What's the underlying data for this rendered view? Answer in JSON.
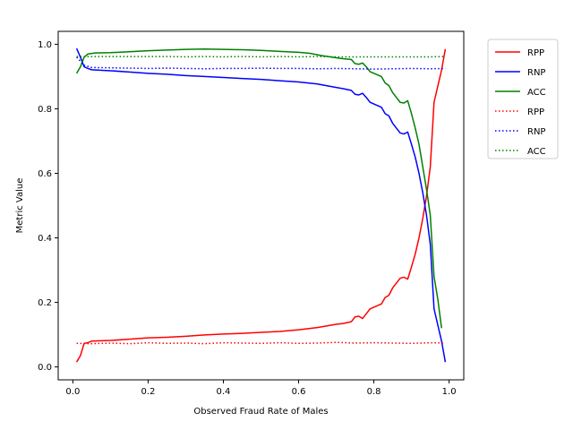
{
  "chart_data": {
    "type": "line",
    "title": "",
    "xlabel": "Observed Fraud Rate of Males",
    "ylabel": "Metric Value",
    "xlim": [
      -0.039,
      1.039
    ],
    "ylim": [
      -0.04,
      1.04
    ],
    "xticks": [
      0.0,
      0.2,
      0.4,
      0.6,
      0.8,
      1.0
    ],
    "xtick_labels": [
      "0.0",
      "0.2",
      "0.4",
      "0.6",
      "0.8",
      "1.0"
    ],
    "yticks": [
      0.0,
      0.2,
      0.4,
      0.6,
      0.8,
      1.0
    ],
    "ytick_labels": [
      "0.0",
      "0.2",
      "0.4",
      "0.6",
      "0.8",
      "1.0"
    ],
    "grid": false,
    "legend_position": "outside-top-right",
    "series": [
      {
        "name": "RPP",
        "color": "#ff0000",
        "style": "solid",
        "points": [
          [
            0.01,
            0.015
          ],
          [
            0.02,
            0.035
          ],
          [
            0.03,
            0.073
          ],
          [
            0.04,
            0.075
          ],
          [
            0.05,
            0.08
          ],
          [
            0.1,
            0.082
          ],
          [
            0.15,
            0.086
          ],
          [
            0.2,
            0.09
          ],
          [
            0.25,
            0.092
          ],
          [
            0.3,
            0.095
          ],
          [
            0.35,
            0.099
          ],
          [
            0.4,
            0.102
          ],
          [
            0.45,
            0.104
          ],
          [
            0.5,
            0.107
          ],
          [
            0.55,
            0.11
          ],
          [
            0.6,
            0.115
          ],
          [
            0.65,
            0.122
          ],
          [
            0.7,
            0.132
          ],
          [
            0.72,
            0.135
          ],
          [
            0.74,
            0.14
          ],
          [
            0.75,
            0.155
          ],
          [
            0.76,
            0.157
          ],
          [
            0.77,
            0.15
          ],
          [
            0.78,
            0.165
          ],
          [
            0.79,
            0.18
          ],
          [
            0.8,
            0.185
          ],
          [
            0.82,
            0.195
          ],
          [
            0.83,
            0.215
          ],
          [
            0.84,
            0.222
          ],
          [
            0.85,
            0.245
          ],
          [
            0.86,
            0.26
          ],
          [
            0.87,
            0.275
          ],
          [
            0.88,
            0.278
          ],
          [
            0.89,
            0.272
          ],
          [
            0.9,
            0.31
          ],
          [
            0.91,
            0.35
          ],
          [
            0.92,
            0.4
          ],
          [
            0.93,
            0.46
          ],
          [
            0.94,
            0.53
          ],
          [
            0.95,
            0.62
          ],
          [
            0.96,
            0.82
          ],
          [
            0.97,
            0.87
          ],
          [
            0.98,
            0.92
          ],
          [
            0.99,
            0.985
          ]
        ]
      },
      {
        "name": "RNP",
        "color": "#0000ff",
        "style": "solid",
        "points": [
          [
            0.01,
            0.987
          ],
          [
            0.02,
            0.96
          ],
          [
            0.03,
            0.93
          ],
          [
            0.04,
            0.925
          ],
          [
            0.05,
            0.921
          ],
          [
            0.1,
            0.918
          ],
          [
            0.15,
            0.914
          ],
          [
            0.2,
            0.91
          ],
          [
            0.25,
            0.907
          ],
          [
            0.3,
            0.903
          ],
          [
            0.35,
            0.9
          ],
          [
            0.4,
            0.897
          ],
          [
            0.45,
            0.894
          ],
          [
            0.5,
            0.891
          ],
          [
            0.55,
            0.887
          ],
          [
            0.6,
            0.883
          ],
          [
            0.65,
            0.877
          ],
          [
            0.7,
            0.866
          ],
          [
            0.72,
            0.862
          ],
          [
            0.74,
            0.857
          ],
          [
            0.75,
            0.845
          ],
          [
            0.76,
            0.843
          ],
          [
            0.77,
            0.848
          ],
          [
            0.78,
            0.835
          ],
          [
            0.79,
            0.82
          ],
          [
            0.8,
            0.815
          ],
          [
            0.82,
            0.805
          ],
          [
            0.83,
            0.785
          ],
          [
            0.84,
            0.778
          ],
          [
            0.85,
            0.755
          ],
          [
            0.86,
            0.74
          ],
          [
            0.87,
            0.725
          ],
          [
            0.88,
            0.722
          ],
          [
            0.89,
            0.728
          ],
          [
            0.9,
            0.69
          ],
          [
            0.91,
            0.65
          ],
          [
            0.92,
            0.6
          ],
          [
            0.93,
            0.54
          ],
          [
            0.94,
            0.47
          ],
          [
            0.95,
            0.38
          ],
          [
            0.96,
            0.18
          ],
          [
            0.97,
            0.13
          ],
          [
            0.98,
            0.08
          ],
          [
            0.99,
            0.015
          ]
        ]
      },
      {
        "name": "ACC",
        "color": "#008000",
        "style": "solid",
        "points": [
          [
            0.01,
            0.91
          ],
          [
            0.02,
            0.93
          ],
          [
            0.03,
            0.96
          ],
          [
            0.04,
            0.97
          ],
          [
            0.06,
            0.973
          ],
          [
            0.1,
            0.974
          ],
          [
            0.15,
            0.977
          ],
          [
            0.2,
            0.98
          ],
          [
            0.25,
            0.982
          ],
          [
            0.3,
            0.984
          ],
          [
            0.35,
            0.985
          ],
          [
            0.4,
            0.984
          ],
          [
            0.45,
            0.983
          ],
          [
            0.5,
            0.981
          ],
          [
            0.55,
            0.978
          ],
          [
            0.6,
            0.975
          ],
          [
            0.63,
            0.972
          ],
          [
            0.66,
            0.965
          ],
          [
            0.7,
            0.958
          ],
          [
            0.72,
            0.955
          ],
          [
            0.74,
            0.953
          ],
          [
            0.75,
            0.94
          ],
          [
            0.76,
            0.938
          ],
          [
            0.77,
            0.942
          ],
          [
            0.78,
            0.93
          ],
          [
            0.79,
            0.915
          ],
          [
            0.8,
            0.91
          ],
          [
            0.82,
            0.9
          ],
          [
            0.83,
            0.88
          ],
          [
            0.84,
            0.872
          ],
          [
            0.85,
            0.85
          ],
          [
            0.86,
            0.835
          ],
          [
            0.87,
            0.82
          ],
          [
            0.88,
            0.818
          ],
          [
            0.89,
            0.825
          ],
          [
            0.9,
            0.785
          ],
          [
            0.91,
            0.74
          ],
          [
            0.92,
            0.69
          ],
          [
            0.93,
            0.62
          ],
          [
            0.94,
            0.55
          ],
          [
            0.95,
            0.47
          ],
          [
            0.96,
            0.28
          ],
          [
            0.97,
            0.21
          ],
          [
            0.98,
            0.12
          ]
        ]
      },
      {
        "name": "RPP",
        "color": "#ff0000",
        "style": "dotted",
        "points": [
          [
            0.01,
            0.073
          ],
          [
            0.05,
            0.072
          ],
          [
            0.1,
            0.074
          ],
          [
            0.15,
            0.072
          ],
          [
            0.2,
            0.075
          ],
          [
            0.25,
            0.073
          ],
          [
            0.3,
            0.074
          ],
          [
            0.35,
            0.072
          ],
          [
            0.4,
            0.075
          ],
          [
            0.45,
            0.074
          ],
          [
            0.5,
            0.073
          ],
          [
            0.55,
            0.075
          ],
          [
            0.6,
            0.073
          ],
          [
            0.65,
            0.074
          ],
          [
            0.7,
            0.076
          ],
          [
            0.75,
            0.074
          ],
          [
            0.8,
            0.075
          ],
          [
            0.85,
            0.074
          ],
          [
            0.9,
            0.073
          ],
          [
            0.95,
            0.075
          ],
          [
            0.99,
            0.074
          ]
        ]
      },
      {
        "name": "RNP",
        "color": "#0000ff",
        "style": "dotted",
        "points": [
          [
            0.01,
            0.96
          ],
          [
            0.03,
            0.935
          ],
          [
            0.05,
            0.928
          ],
          [
            0.1,
            0.927
          ],
          [
            0.15,
            0.926
          ],
          [
            0.2,
            0.925
          ],
          [
            0.25,
            0.926
          ],
          [
            0.3,
            0.925
          ],
          [
            0.35,
            0.924
          ],
          [
            0.4,
            0.925
          ],
          [
            0.45,
            0.925
          ],
          [
            0.5,
            0.926
          ],
          [
            0.55,
            0.925
          ],
          [
            0.6,
            0.925
          ],
          [
            0.65,
            0.924
          ],
          [
            0.7,
            0.925
          ],
          [
            0.75,
            0.924
          ],
          [
            0.8,
            0.923
          ],
          [
            0.85,
            0.924
          ],
          [
            0.9,
            0.925
          ],
          [
            0.95,
            0.924
          ],
          [
            0.99,
            0.925
          ]
        ]
      },
      {
        "name": "ACC",
        "color": "#008000",
        "style": "dotted",
        "points": [
          [
            0.01,
            0.962
          ],
          [
            0.05,
            0.962
          ],
          [
            0.1,
            0.962
          ],
          [
            0.15,
            0.962
          ],
          [
            0.2,
            0.962
          ],
          [
            0.25,
            0.962
          ],
          [
            0.3,
            0.961
          ],
          [
            0.35,
            0.962
          ],
          [
            0.4,
            0.961
          ],
          [
            0.45,
            0.962
          ],
          [
            0.5,
            0.961
          ],
          [
            0.55,
            0.962
          ],
          [
            0.6,
            0.961
          ],
          [
            0.65,
            0.962
          ],
          [
            0.7,
            0.961
          ],
          [
            0.75,
            0.961
          ],
          [
            0.8,
            0.961
          ],
          [
            0.85,
            0.961
          ],
          [
            0.9,
            0.961
          ],
          [
            0.95,
            0.961
          ],
          [
            0.99,
            0.962
          ]
        ]
      }
    ]
  }
}
